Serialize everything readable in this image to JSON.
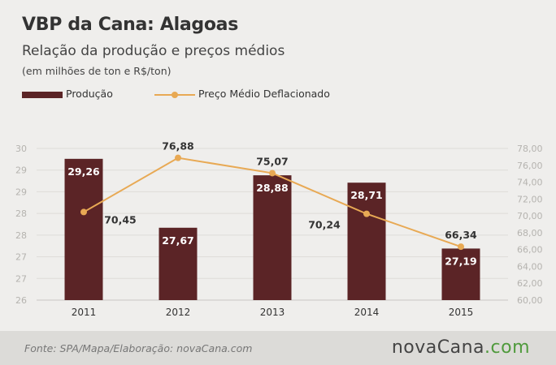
{
  "header": {
    "title": "VBP da Cana: Alagoas",
    "subtitle": "Relação da produção e preços médios",
    "units": "(em milhões de ton e R$/ton)"
  },
  "legend": {
    "bar_label": "Produção",
    "line_label": "Preço Médio Deflacionado"
  },
  "footer": {
    "source": "Fonte: SPA/Mapa/Elaboração: novaCana.com",
    "brand_part1": "novaCana",
    "brand_part2": ".com"
  },
  "colors": {
    "bar": "#5b2426",
    "line": "#e8a954",
    "background": "#efeeec",
    "footer": "#dcdbd8",
    "brand_green": "#4f9a3c"
  },
  "chart_data": {
    "type": "bar",
    "categories": [
      "2011",
      "2012",
      "2013",
      "2014",
      "2015"
    ],
    "series": [
      {
        "name": "Produção",
        "type": "bar",
        "axis": "left",
        "values": [
          29.26,
          27.67,
          28.88,
          28.71,
          27.19
        ],
        "labels": [
          "29,26",
          "27,67",
          "28,88",
          "28,71",
          "27,19"
        ]
      },
      {
        "name": "Preço Médio Deflacionado",
        "type": "line",
        "axis": "right",
        "values": [
          70.45,
          76.88,
          75.07,
          70.24,
          66.34
        ],
        "labels": [
          "70,45",
          "76,88",
          "75,07",
          "70,24",
          "66,34"
        ]
      }
    ],
    "left_axis": {
      "ylim": [
        26,
        29.5
      ],
      "ticks": [
        26,
        26.5,
        27,
        27.5,
        28,
        28.5,
        29,
        29.5
      ],
      "tick_labels": [
        "26",
        "27",
        "27",
        "28",
        "28",
        "29",
        "29",
        "30"
      ]
    },
    "right_axis": {
      "ylim": [
        60,
        78
      ],
      "ticks": [
        60,
        62,
        64,
        66,
        68,
        70,
        72,
        74,
        76,
        78
      ],
      "tick_labels": [
        "60,00",
        "62,00",
        "64,00",
        "66,00",
        "68,00",
        "70,00",
        "72,00",
        "74,00",
        "76,00",
        "78,00"
      ]
    },
    "grid": true,
    "legend_position": "top-left"
  }
}
